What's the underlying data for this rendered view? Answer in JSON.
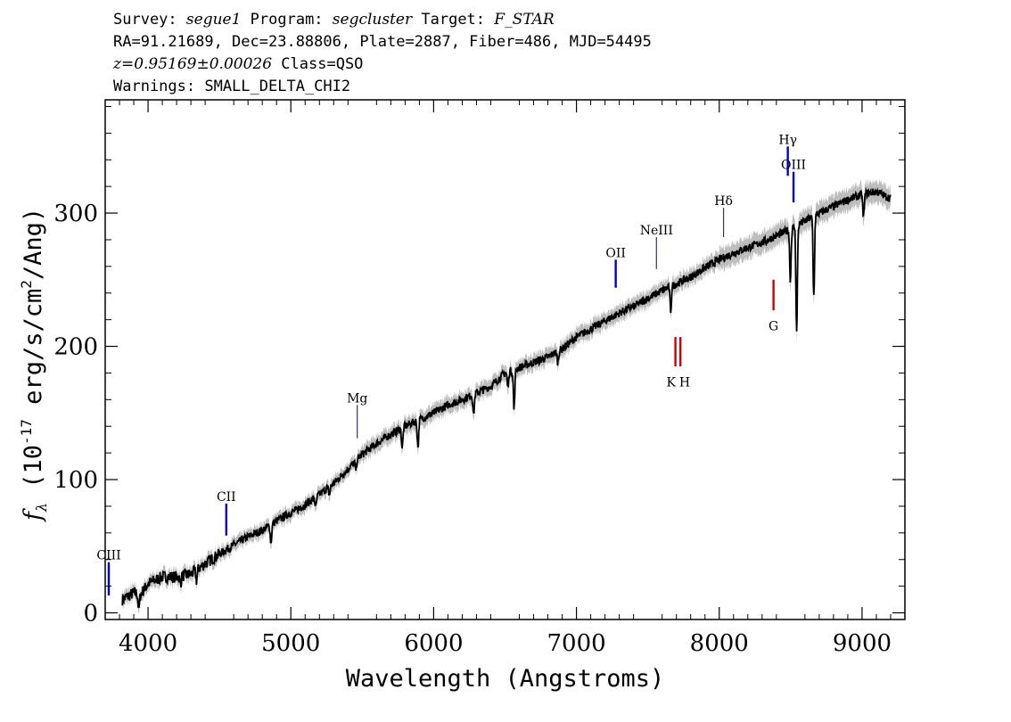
{
  "header": {
    "line1": {
      "survey_label": "Survey:",
      "survey": "segue1",
      "program_label": "Program:",
      "program": "segcluster",
      "target_label": "Target:",
      "target": "F_STAR"
    },
    "line2": "RA=91.21689, Dec=23.88806, Plate=2887, Fiber=486, MJD=54495",
    "line3": {
      "redshift": "z=0.95169±0.00026",
      "class": "Class=QSO"
    },
    "line4": "Warnings: SMALL_DELTA_CHI2"
  },
  "chart_data": {
    "type": "line",
    "xlabel": "Wavelength (Angstroms)",
    "ylabel_prefix": "f",
    "ylabel_sub": "λ",
    "ylabel_main": " (10",
    "ylabel_exp": "-17",
    "ylabel_mid": " erg/s/cm",
    "ylabel_exp2": "2",
    "ylabel_end": "/Ang)",
    "xlim": [
      3700,
      9300
    ],
    "ylim": [
      -5,
      385
    ],
    "x_ticks": [
      4000,
      5000,
      6000,
      7000,
      8000,
      9000
    ],
    "y_ticks": [
      0,
      100,
      200,
      300
    ],
    "colors": {
      "flux": "#000000",
      "error_band": "#bdbdbd",
      "emission": "#0000cc",
      "absorption": "#cc0000"
    },
    "series": [
      {
        "x": [
          3820,
          3900,
          3950,
          4000,
          4100,
          4200,
          4300,
          4400,
          4500,
          4600,
          4700,
          4800,
          4900,
          5000,
          5100,
          5200,
          5300,
          5400,
          5500,
          5600,
          5700,
          5800,
          5900,
          6000,
          6100,
          6200,
          6300,
          6400,
          6500,
          6600,
          6700,
          6800,
          6900,
          7000,
          7100,
          7200,
          7300,
          7400,
          7500,
          7600,
          7700,
          7800,
          7900,
          8000,
          8100,
          8200,
          8300,
          8400,
          8500,
          8600,
          8700,
          8800,
          8900,
          9000,
          9100,
          9200
        ],
        "y": [
          10,
          15,
          14,
          22,
          27,
          27,
          29,
          37,
          44,
          51,
          57,
          62,
          69,
          75,
          81,
          89,
          97,
          108,
          119,
          127,
          134,
          140,
          145,
          150,
          156,
          160,
          165,
          170,
          180,
          184,
          188,
          192,
          198,
          207,
          213,
          219,
          225,
          230,
          236,
          242,
          247,
          252,
          259,
          265,
          270,
          274,
          278,
          283,
          288,
          294,
          300,
          305,
          310,
          314,
          316,
          311
        ]
      }
    ],
    "absorption_dips": [
      {
        "x": 3935,
        "depth": 12
      },
      {
        "x": 4227,
        "depth": 6
      },
      {
        "x": 4340,
        "depth": 8
      },
      {
        "x": 4861,
        "depth": 14
      },
      {
        "x": 5175,
        "depth": 8
      },
      {
        "x": 5270,
        "depth": 6
      },
      {
        "x": 5455,
        "depth": 6
      },
      {
        "x": 5780,
        "depth": 15
      },
      {
        "x": 5890,
        "depth": 20
      },
      {
        "x": 6280,
        "depth": 15
      },
      {
        "x": 6520,
        "depth": 12
      },
      {
        "x": 6563,
        "depth": 30
      },
      {
        "x": 6870,
        "depth": 8
      },
      {
        "x": 7660,
        "depth": 18
      },
      {
        "x": 8498,
        "depth": 38
      },
      {
        "x": 8542,
        "depth": 80
      },
      {
        "x": 8662,
        "depth": 60
      },
      {
        "x": 9010,
        "depth": 18
      }
    ],
    "line_markers": [
      {
        "label": "CIII",
        "x": 3725,
        "y1": 13,
        "y2": 38,
        "label_y": 40,
        "type": "emission"
      },
      {
        "label": "CII",
        "x": 4548,
        "y1": 58,
        "y2": 82,
        "label_y": 84,
        "type": "emission"
      },
      {
        "label": "Mg",
        "x": 5465,
        "y1": 131,
        "y2": 156,
        "label_y": 158,
        "type": "thin"
      },
      {
        "label": "OII",
        "x": 7275,
        "y1": 244,
        "y2": 265,
        "label_y": 267,
        "type": "emission"
      },
      {
        "label": "NeIII",
        "x": 7560,
        "y1": 258,
        "y2": 282,
        "label_y": 284,
        "type": "thin"
      },
      {
        "label": "Hδ",
        "x": 8030,
        "y1": 282,
        "y2": 304,
        "label_y": 306,
        "type": "thin"
      },
      {
        "label": "Hγ",
        "x": 8480,
        "y1": 328,
        "y2": 350,
        "label_y": 352,
        "type": "emission"
      },
      {
        "label": "OIII",
        "x": 8520,
        "y1": 308,
        "y2": 331,
        "label_y": 333,
        "type": "emission"
      },
      {
        "label": "K",
        "x": 7693,
        "y1": 185,
        "y2": 207,
        "label_y": 170,
        "type": "absorption",
        "label_x": 7663
      },
      {
        "label": "H",
        "x": 7728,
        "y1": 185,
        "y2": 207,
        "label_y": 170,
        "type": "absorption",
        "label_x": 7758
      },
      {
        "label": "G",
        "x": 8380,
        "y1": 227,
        "y2": 250,
        "label_y": 212,
        "type": "absorption"
      }
    ]
  }
}
